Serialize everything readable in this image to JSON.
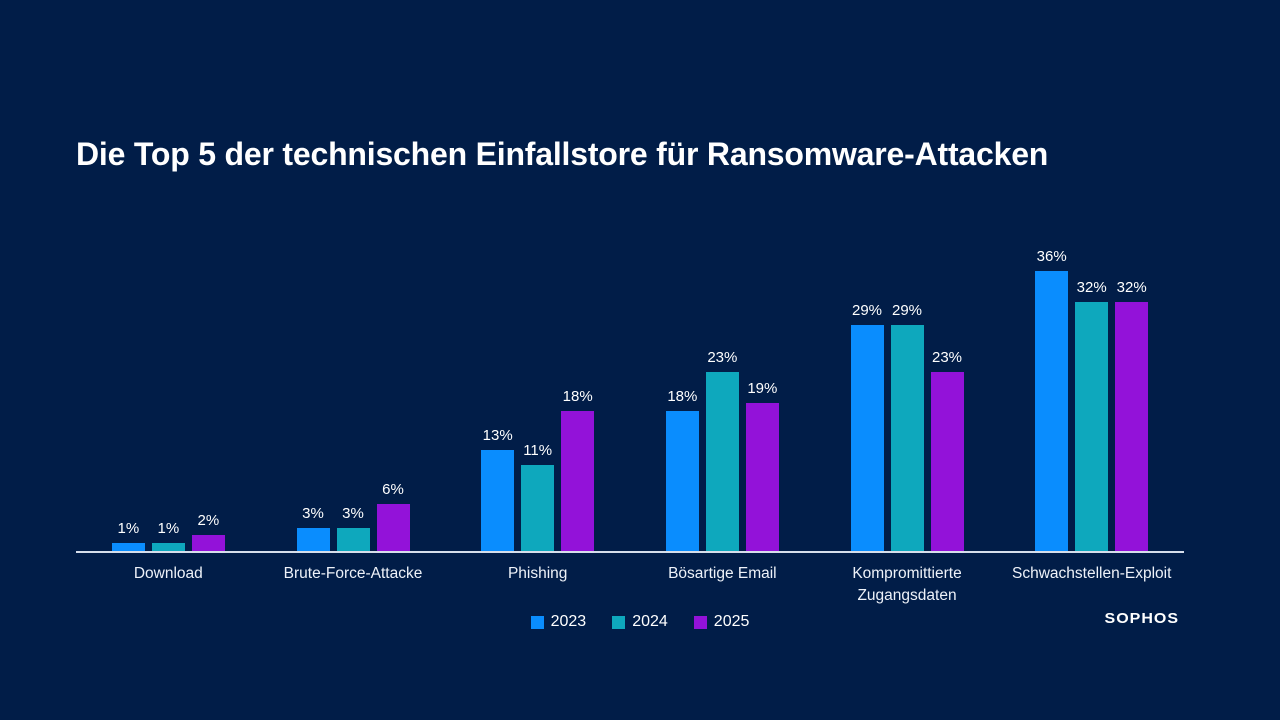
{
  "background_color": "#011d48",
  "text_color": "#eef2f9",
  "axis_color": "#d6deeb",
  "brand": "SOPHOS",
  "chart_data": {
    "type": "bar",
    "title": "Die Top 5 der technischen Einfallstore für Ransomware-Attacken",
    "categories": [
      "Download",
      "Brute-Force-Attacke",
      "Phishing",
      "Bösartige Email",
      "Kompromittierte Zugangsdaten",
      "Schwachstellen-Exploit"
    ],
    "series": [
      {
        "name": "2023",
        "color": "#0a8dfe",
        "values": [
          1,
          3,
          13,
          18,
          29,
          36
        ]
      },
      {
        "name": "2024",
        "color": "#0ea8bd",
        "values": [
          1,
          3,
          11,
          23,
          29,
          32
        ]
      },
      {
        "name": "2025",
        "color": "#9312d9",
        "values": [
          2,
          6,
          18,
          19,
          23,
          32
        ]
      }
    ],
    "value_suffix": "%",
    "data_labels": true,
    "grid": false,
    "ylim": [
      0,
      38
    ],
    "legend_position": "bottom",
    "xlabel": "",
    "ylabel": ""
  }
}
